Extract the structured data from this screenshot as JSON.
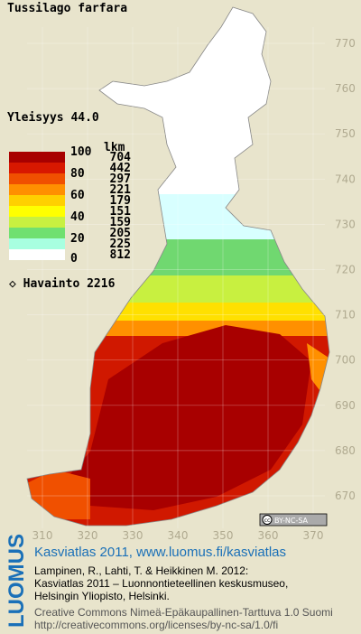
{
  "map": {
    "title": "Tussilago farfara",
    "frequency": "Yleisyys  44.0",
    "legend": {
      "scale": [
        100,
        80,
        60,
        40,
        20,
        0
      ],
      "count_header": "lkm",
      "counts": [
        704,
        442,
        297,
        221,
        179,
        151,
        159,
        205,
        225,
        812
      ],
      "colors": [
        "#a80000",
        "#d81800",
        "#f05000",
        "#ff9000",
        "#ffd000",
        "#ffff00",
        "#c8f040",
        "#70e070",
        "#a8ffe0",
        "#ffffff"
      ]
    },
    "observation_label": "Havainto",
    "observations": 2216,
    "grid": {
      "northing": [
        770,
        760,
        750,
        740,
        730,
        720,
        710,
        700,
        690,
        680,
        670
      ],
      "easting": [
        310,
        320,
        330,
        340,
        350,
        360,
        370
      ]
    },
    "license_badge": "BY-NC-SA",
    "footer": {
      "brand": "LUOMUS",
      "link": "Kasviatlas 2011, www.luomus.fi/kasviatlas",
      "citation": [
        "Lampinen, R., Lahti, T. & Heikkinen M. 2012:",
        "Kasviatlas 2011 – Luonnontieteellinen keskusmuseo,",
        "Helsingin Yliopisto, Helsinki."
      ],
      "license": [
        "Creative Commons Nimeä-Epäkaupallinen-Tarttuva 1.0 Suomi",
        "http://creativecommons.org/licenses/by-nc-sa/1.0/fi"
      ]
    }
  }
}
